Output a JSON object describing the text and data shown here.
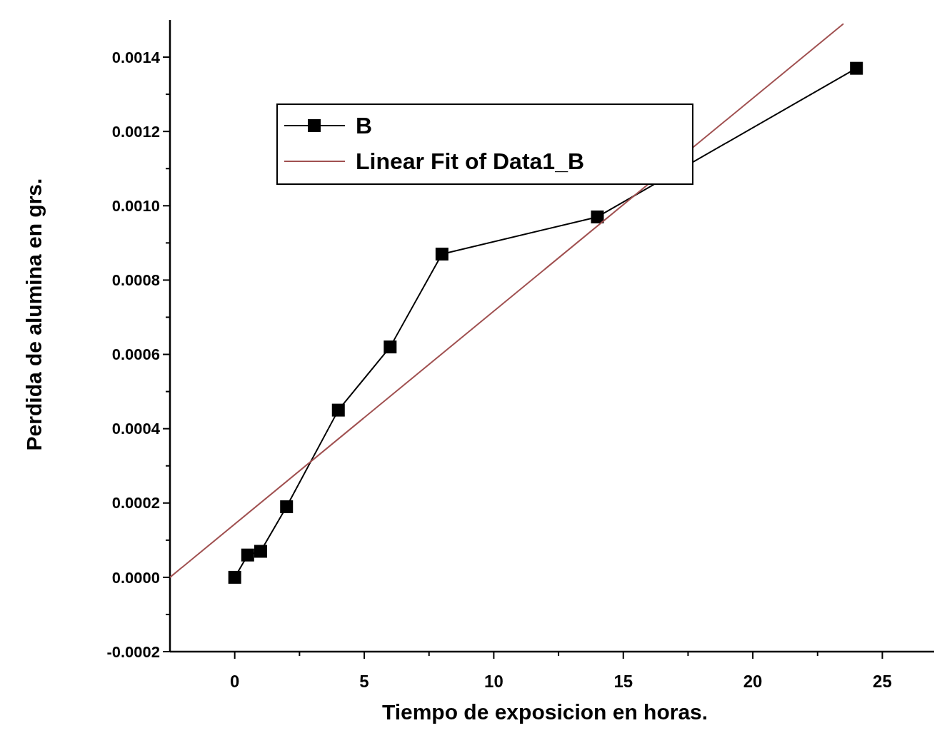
{
  "chart_data": {
    "type": "line",
    "xlabel": "Tiempo de exposicion en horas.",
    "ylabel": "Perdida de alumina en grs.",
    "xlim": [
      -2.5,
      27
    ],
    "xticks": [
      0,
      5,
      10,
      15,
      20,
      25
    ],
    "ylim": [
      -0.0002,
      0.0015
    ],
    "yticks": [
      {
        "value": -0.0002,
        "label": "-0.0002"
      },
      {
        "value": 0,
        "label": "0.0000"
      },
      {
        "value": 0.0002,
        "label": "0.0002"
      },
      {
        "value": 0.0004,
        "label": "0.0004"
      },
      {
        "value": 0.0006,
        "label": "0.0006"
      },
      {
        "value": 0.0008,
        "label": "0.0008"
      },
      {
        "value": 0.001,
        "label": "0.0010"
      },
      {
        "value": 0.0012,
        "label": "0.0012"
      },
      {
        "value": 0.0014,
        "label": "0.0014"
      }
    ],
    "grid": false,
    "legend": "top left",
    "series": [
      {
        "name": "B",
        "color": "#000000",
        "marker": "square",
        "x": [
          0,
          0.5,
          1,
          2,
          4,
          6,
          8,
          14,
          24
        ],
        "values": [
          0,
          6e-05,
          7e-05,
          0.00019,
          0.00045,
          0.00062,
          0.00087,
          0.00097,
          0.00137
        ]
      },
      {
        "name": "Linear Fit of Data1_B",
        "color": "#a05050",
        "marker": "none",
        "x": [
          -2.5,
          23.5
        ],
        "values": [
          0,
          0.00149
        ]
      }
    ]
  }
}
